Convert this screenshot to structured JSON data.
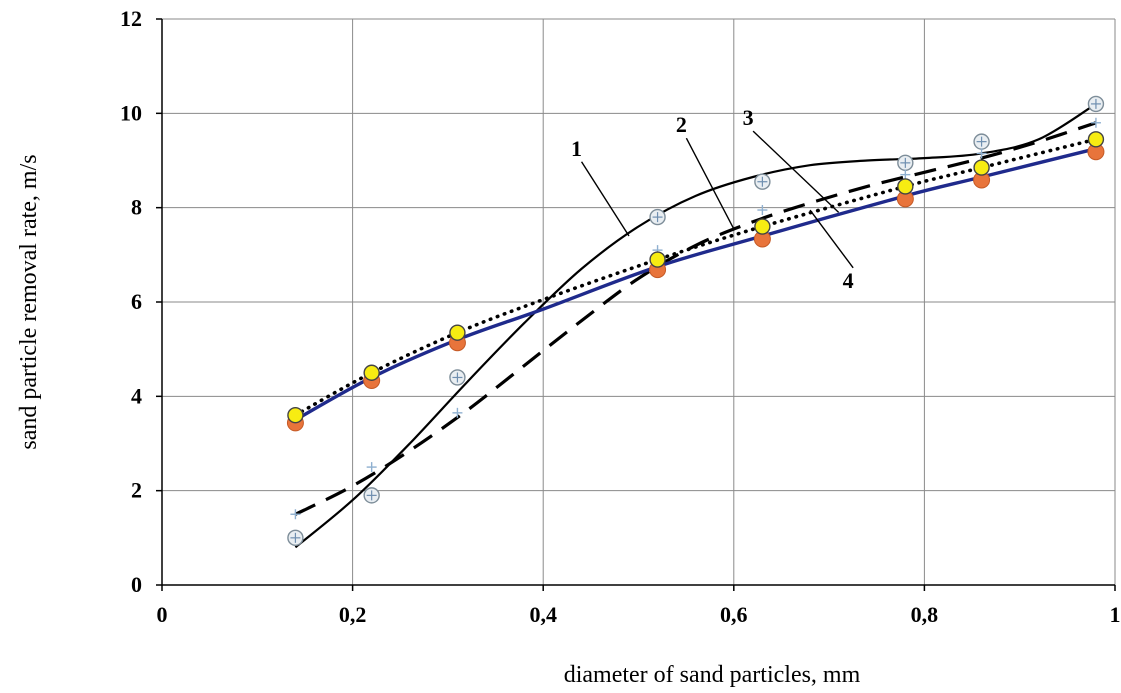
{
  "chart_data": {
    "type": "line",
    "xlabel": "diameter of sand particles,  mm",
    "ylabel": "sand particle removal rate, m/s",
    "xlim": [
      0,
      1
    ],
    "ylim": [
      0,
      12
    ],
    "grid": true,
    "x_ticks": [
      {
        "value": 0,
        "label": "0"
      },
      {
        "value": 0.2,
        "label": "0,2"
      },
      {
        "value": 0.4,
        "label": "0,4"
      },
      {
        "value": 0.6,
        "label": "0,6"
      },
      {
        "value": 0.8,
        "label": "0,8"
      },
      {
        "value": 1.0,
        "label": "1"
      }
    ],
    "y_ticks": [
      {
        "value": 0,
        "label": "0"
      },
      {
        "value": 2,
        "label": "2"
      },
      {
        "value": 4,
        "label": "4"
      },
      {
        "value": 6,
        "label": "6"
      },
      {
        "value": 8,
        "label": "8"
      },
      {
        "value": 10,
        "label": "10"
      },
      {
        "value": 12,
        "label": "12"
      }
    ],
    "series": [
      {
        "name": "1",
        "style": "solid-thin",
        "color": "#000000",
        "marker": "circle-cross",
        "points": [
          [
            0.14,
            1.0
          ],
          [
            0.22,
            1.9
          ],
          [
            0.31,
            4.4
          ],
          [
            0.52,
            7.8
          ],
          [
            0.63,
            8.55
          ],
          [
            0.78,
            8.95
          ],
          [
            0.86,
            9.4
          ],
          [
            0.98,
            10.2
          ]
        ],
        "trend": [
          [
            0.14,
            0.8
          ],
          [
            0.2,
            1.8
          ],
          [
            0.26,
            3.0
          ],
          [
            0.32,
            4.3
          ],
          [
            0.38,
            5.55
          ],
          [
            0.44,
            6.7
          ],
          [
            0.5,
            7.6
          ],
          [
            0.56,
            8.25
          ],
          [
            0.62,
            8.65
          ],
          [
            0.68,
            8.9
          ],
          [
            0.74,
            9.0
          ],
          [
            0.8,
            9.05
          ],
          [
            0.86,
            9.15
          ],
          [
            0.92,
            9.45
          ],
          [
            0.98,
            10.2
          ]
        ]
      },
      {
        "name": "2",
        "style": "dashed",
        "color": "#000000",
        "marker": "plus",
        "points": [
          [
            0.14,
            1.5
          ],
          [
            0.22,
            2.5
          ],
          [
            0.31,
            3.65
          ],
          [
            0.52,
            7.1
          ],
          [
            0.63,
            7.95
          ],
          [
            0.78,
            8.7
          ],
          [
            0.86,
            9.15
          ],
          [
            0.98,
            9.8
          ]
        ],
        "trend": [
          [
            0.14,
            1.5
          ],
          [
            0.2,
            2.1
          ],
          [
            0.26,
            2.85
          ],
          [
            0.32,
            3.7
          ],
          [
            0.38,
            4.65
          ],
          [
            0.44,
            5.6
          ],
          [
            0.5,
            6.5
          ],
          [
            0.56,
            7.2
          ],
          [
            0.62,
            7.7
          ],
          [
            0.68,
            8.1
          ],
          [
            0.74,
            8.45
          ],
          [
            0.8,
            8.75
          ],
          [
            0.86,
            9.05
          ],
          [
            0.92,
            9.4
          ],
          [
            0.98,
            9.8
          ]
        ]
      },
      {
        "name": "3",
        "style": "dotted",
        "color": "#000000",
        "marker": "yellow-circle",
        "points": [
          [
            0.14,
            3.6
          ],
          [
            0.22,
            4.5
          ],
          [
            0.31,
            5.35
          ],
          [
            0.52,
            6.9
          ],
          [
            0.63,
            7.6
          ],
          [
            0.78,
            8.45
          ],
          [
            0.86,
            8.85
          ],
          [
            0.98,
            9.45
          ]
        ],
        "trend": [
          [
            0.14,
            3.6
          ],
          [
            0.22,
            4.5
          ],
          [
            0.31,
            5.35
          ],
          [
            0.4,
            6.05
          ],
          [
            0.52,
            6.9
          ],
          [
            0.63,
            7.6
          ],
          [
            0.78,
            8.45
          ],
          [
            0.86,
            8.85
          ],
          [
            0.98,
            9.45
          ]
        ]
      },
      {
        "name": "4",
        "style": "solid-thick",
        "color": "#1f2a8c",
        "marker": "orange-circle",
        "points": [
          [
            0.14,
            3.5
          ],
          [
            0.22,
            4.4
          ],
          [
            0.31,
            5.2
          ],
          [
            0.52,
            6.75
          ],
          [
            0.63,
            7.4
          ],
          [
            0.78,
            8.25
          ],
          [
            0.86,
            8.65
          ],
          [
            0.98,
            9.25
          ]
        ],
        "trend": [
          [
            0.14,
            3.5
          ],
          [
            0.22,
            4.4
          ],
          [
            0.31,
            5.2
          ],
          [
            0.4,
            5.85
          ],
          [
            0.52,
            6.75
          ],
          [
            0.63,
            7.4
          ],
          [
            0.78,
            8.25
          ],
          [
            0.86,
            8.65
          ],
          [
            0.98,
            9.25
          ]
        ]
      }
    ],
    "annotations": [
      {
        "text": "1",
        "x": 0.435,
        "y": 9.1,
        "pointer_to": [
          0.49,
          7.4
        ]
      },
      {
        "text": "2",
        "x": 0.545,
        "y": 9.6,
        "pointer_to": [
          0.6,
          7.55
        ]
      },
      {
        "text": "3",
        "x": 0.615,
        "y": 9.75,
        "pointer_to": [
          0.71,
          7.9
        ]
      },
      {
        "text": "4",
        "x": 0.72,
        "y": 6.3,
        "pointer_to": [
          0.68,
          7.95
        ]
      }
    ]
  }
}
